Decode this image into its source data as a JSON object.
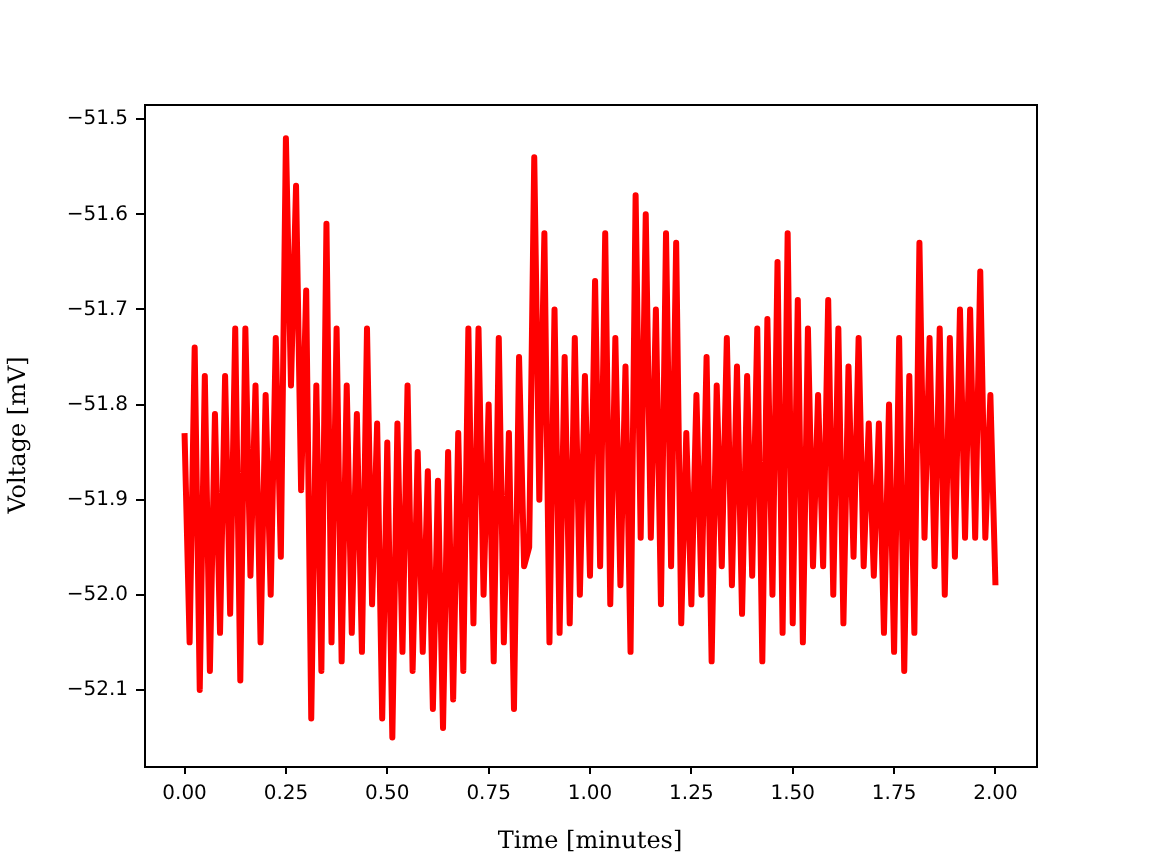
{
  "chart_data": {
    "type": "line",
    "xlabel": "Time [minutes]",
    "ylabel": "Voltage [mV]",
    "color": "#ff0000",
    "xlim": [
      -0.1,
      2.1
    ],
    "ylim": [
      -52.18,
      -51.484
    ],
    "xticks": [
      {
        "value": 0,
        "label": "0.00"
      },
      {
        "value": 0.25,
        "label": "0.25"
      },
      {
        "value": 0.5,
        "label": "0.50"
      },
      {
        "value": 0.75,
        "label": "0.75"
      },
      {
        "value": 1,
        "label": "1.00"
      },
      {
        "value": 1.25,
        "label": "1.25"
      },
      {
        "value": 1.5,
        "label": "1.50"
      },
      {
        "value": 1.75,
        "label": "1.75"
      },
      {
        "value": 2,
        "label": "2.00"
      }
    ],
    "yticks": [
      {
        "value": -52.1,
        "label": "−52.1"
      },
      {
        "value": -52.0,
        "label": "−52.0"
      },
      {
        "value": -51.9,
        "label": "−51.9"
      },
      {
        "value": -51.8,
        "label": "−51.8"
      },
      {
        "value": -51.7,
        "label": "−51.7"
      },
      {
        "value": -51.6,
        "label": "−51.6"
      },
      {
        "value": -51.5,
        "label": "−51.5"
      }
    ],
    "x": [
      0,
      0.0125,
      0.025,
      0.0375,
      0.05,
      0.0625,
      0.075,
      0.0875,
      0.1,
      0.1125,
      0.125,
      0.1375,
      0.15,
      0.1625,
      0.175,
      0.1875,
      0.2,
      0.2125,
      0.225,
      0.2375,
      0.25,
      0.2625,
      0.275,
      0.2875,
      0.3,
      0.3125,
      0.325,
      0.3375,
      0.35,
      0.3625,
      0.375,
      0.3875,
      0.4,
      0.4125,
      0.425,
      0.4375,
      0.45,
      0.4625,
      0.475,
      0.4875,
      0.5,
      0.5125,
      0.525,
      0.5375,
      0.55,
      0.5625,
      0.575,
      0.5875,
      0.6,
      0.6125,
      0.625,
      0.6375,
      0.65,
      0.6625,
      0.675,
      0.6875,
      0.7,
      0.7125,
      0.725,
      0.7375,
      0.75,
      0.7625,
      0.775,
      0.7875,
      0.8,
      0.8125,
      0.825,
      0.8375,
      0.85,
      0.8625,
      0.875,
      0.8875,
      0.9,
      0.9125,
      0.925,
      0.9375,
      0.95,
      0.9625,
      0.975,
      0.9875,
      1,
      1.0125,
      1.025,
      1.0375,
      1.05,
      1.0625,
      1.075,
      1.0875,
      1.1,
      1.1125,
      1.125,
      1.1375,
      1.15,
      1.1625,
      1.175,
      1.1875,
      1.2,
      1.2125,
      1.225,
      1.2375,
      1.25,
      1.2625,
      1.275,
      1.2875,
      1.3,
      1.3125,
      1.325,
      1.3375,
      1.35,
      1.3625,
      1.375,
      1.3875,
      1.4,
      1.4125,
      1.425,
      1.4375,
      1.45,
      1.4625,
      1.475,
      1.4875,
      1.5,
      1.5125,
      1.525,
      1.5375,
      1.55,
      1.5625,
      1.575,
      1.5875,
      1.6,
      1.6125,
      1.625,
      1.6375,
      1.65,
      1.6625,
      1.675,
      1.6875,
      1.7,
      1.7125,
      1.725,
      1.7375,
      1.75,
      1.7625,
      1.775,
      1.7875,
      1.8,
      1.8125,
      1.825,
      1.8375,
      1.85,
      1.8625,
      1.875,
      1.8875,
      1.9,
      1.9125,
      1.925,
      1.9375,
      1.95,
      1.9625,
      1.975,
      1.9875,
      2
    ],
    "values": [
      -51.83,
      -52.05,
      -51.74,
      -52.1,
      -51.77,
      -52.08,
      -51.81,
      -52.04,
      -51.77,
      -52.02,
      -51.72,
      -52.09,
      -51.72,
      -51.98,
      -51.78,
      -52.05,
      -51.79,
      -52.0,
      -51.73,
      -51.96,
      -51.52,
      -51.78,
      -51.57,
      -51.89,
      -51.68,
      -52.13,
      -51.78,
      -52.08,
      -51.61,
      -52.05,
      -51.72,
      -52.07,
      -51.78,
      -52.04,
      -51.81,
      -52.06,
      -51.72,
      -52.01,
      -51.82,
      -52.13,
      -51.84,
      -52.15,
      -51.82,
      -52.06,
      -51.78,
      -52.08,
      -51.85,
      -52.06,
      -51.87,
      -52.12,
      -51.88,
      -52.14,
      -51.85,
      -52.11,
      -51.83,
      -52.08,
      -51.72,
      -52.03,
      -51.72,
      -52.0,
      -51.8,
      -52.07,
      -51.73,
      -52.05,
      -51.83,
      -52.12,
      -51.75,
      -51.97,
      -51.95,
      -51.54,
      -51.9,
      -51.62,
      -52.05,
      -51.7,
      -52.04,
      -51.75,
      -52.03,
      -51.73,
      -52.0,
      -51.77,
      -51.98,
      -51.67,
      -51.97,
      -51.62,
      -52.01,
      -51.73,
      -51.99,
      -51.76,
      -52.06,
      -51.58,
      -51.94,
      -51.6,
      -51.94,
      -51.7,
      -52.01,
      -51.62,
      -51.97,
      -51.63,
      -52.03,
      -51.83,
      -52.01,
      -51.79,
      -52.0,
      -51.75,
      -52.07,
      -51.78,
      -51.97,
      -51.73,
      -51.99,
      -51.76,
      -52.02,
      -51.77,
      -51.98,
      -51.72,
      -52.07,
      -51.71,
      -52.0,
      -51.65,
      -52.04,
      -51.62,
      -52.03,
      -51.69,
      -52.05,
      -51.72,
      -51.97,
      -51.79,
      -51.97,
      -51.69,
      -52.0,
      -51.72,
      -52.03,
      -51.76,
      -51.96,
      -51.73,
      -51.97,
      -51.82,
      -51.98,
      -51.82,
      -52.04,
      -51.8,
      -52.06,
      -51.73,
      -52.08,
      -51.77,
      -52.04,
      -51.63,
      -51.94,
      -51.73,
      -51.97,
      -51.72,
      -52.0,
      -51.73,
      -51.96,
      -51.7,
      -51.94,
      -51.7,
      -51.94,
      -51.66,
      -51.94,
      -51.79,
      -51.99
    ]
  }
}
